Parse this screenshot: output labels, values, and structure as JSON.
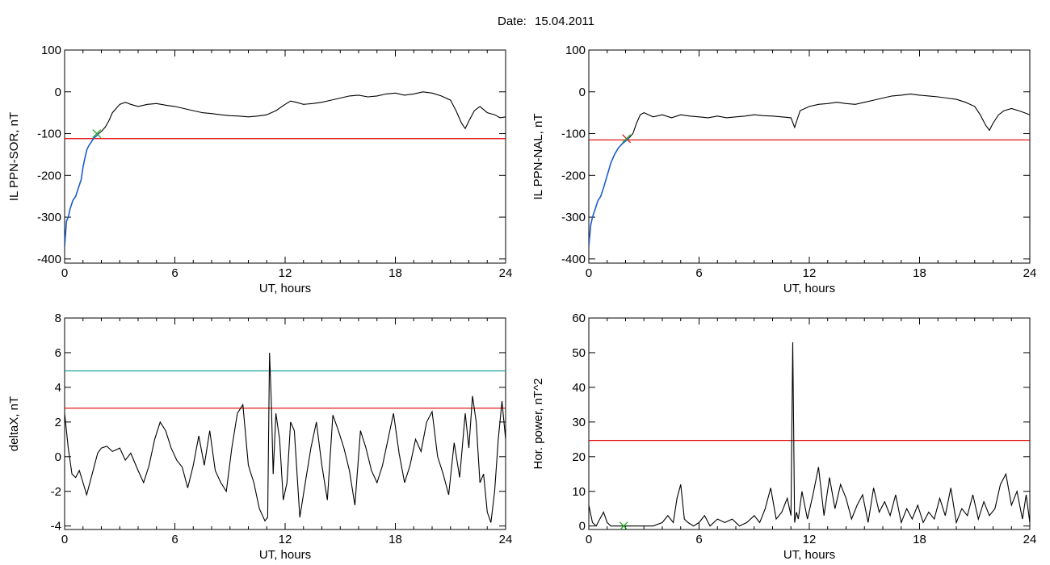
{
  "header": {
    "date_label": "Date:",
    "date_value": "15.04.2011"
  },
  "colors": {
    "trace": "#000000",
    "threshold": "#e00000",
    "threshold2": "#20a0a0",
    "early_segment": "#1f5fd0",
    "marker": "#22aa22",
    "marker2": "#cc2222"
  },
  "chart_data": [
    {
      "type": "line",
      "xlabel": "UT, hours",
      "ylabel": "IL PPN-SOR, nT",
      "xlim": [
        0,
        24
      ],
      "ylim": [
        -410,
        100
      ],
      "xticks": [
        0,
        6,
        12,
        18,
        24
      ],
      "yticks": [
        -400,
        -300,
        -200,
        -100,
        0,
        100
      ],
      "x": [
        0,
        0.1,
        0.2,
        0.3,
        0.45,
        0.6,
        0.75,
        0.9,
        1.0,
        1.1,
        1.2,
        1.3,
        1.45,
        1.6,
        1.75,
        1.85,
        2.0,
        2.2,
        2.4,
        2.6,
        2.8,
        3.0,
        3.3,
        3.6,
        4.0,
        4.5,
        5.0,
        5.5,
        6.0,
        6.5,
        7.0,
        7.5,
        8.0,
        8.5,
        9.0,
        9.5,
        10.0,
        10.5,
        11.0,
        11.5,
        12.0,
        12.3,
        12.6,
        13.0,
        13.5,
        14.0,
        14.5,
        15.0,
        15.5,
        16.0,
        16.5,
        17.0,
        17.5,
        18.0,
        18.5,
        19.0,
        19.5,
        20.0,
        20.5,
        21.0,
        21.3,
        21.6,
        21.8,
        22.0,
        22.3,
        22.6,
        23.0,
        23.4,
        23.7,
        24.0
      ],
      "values": [
        -370,
        -310,
        -300,
        -280,
        -260,
        -250,
        -230,
        -210,
        -180,
        -160,
        -140,
        -130,
        -120,
        -110,
        -105,
        -100,
        -95,
        -85,
        -70,
        -50,
        -40,
        -30,
        -25,
        -30,
        -35,
        -30,
        -28,
        -32,
        -35,
        -40,
        -45,
        -50,
        -52,
        -55,
        -57,
        -58,
        -60,
        -58,
        -55,
        -45,
        -30,
        -22,
        -25,
        -30,
        -28,
        -25,
        -20,
        -15,
        -10,
        -8,
        -12,
        -10,
        -5,
        -3,
        -8,
        -5,
        0,
        -3,
        -10,
        -20,
        -45,
        -75,
        -88,
        -70,
        -45,
        -35,
        -50,
        -55,
        -62,
        -60
      ],
      "threshold": -112,
      "early_segment_end_x": 1.85,
      "marker_x": 1.75,
      "marker_y": -100
    },
    {
      "type": "line",
      "xlabel": "UT, hours",
      "ylabel": "IL PPN-NAL, nT",
      "xlim": [
        0,
        24
      ],
      "ylim": [
        -410,
        100
      ],
      "xticks": [
        0,
        6,
        12,
        18,
        24
      ],
      "yticks": [
        -400,
        -300,
        -200,
        -100,
        0,
        100
      ],
      "x": [
        0,
        0.1,
        0.2,
        0.35,
        0.5,
        0.65,
        0.8,
        1.0,
        1.2,
        1.4,
        1.6,
        1.8,
        2.0,
        2.2,
        2.4,
        2.6,
        2.8,
        3.0,
        3.5,
        4.0,
        4.5,
        5.0,
        5.5,
        6.0,
        6.5,
        7.0,
        7.5,
        8.0,
        8.5,
        9.0,
        9.5,
        10.0,
        10.5,
        11.0,
        11.2,
        11.5,
        12.0,
        12.5,
        13.0,
        13.5,
        14.0,
        14.5,
        15.0,
        15.5,
        16.0,
        16.5,
        17.0,
        17.5,
        18.0,
        18.5,
        19.0,
        19.5,
        20.0,
        20.5,
        21.0,
        21.3,
        21.6,
        21.8,
        22.0,
        22.3,
        22.6,
        23.0,
        23.4,
        23.7,
        24.0
      ],
      "values": [
        -370,
        -320,
        -300,
        -280,
        -260,
        -250,
        -230,
        -200,
        -170,
        -150,
        -135,
        -125,
        -118,
        -110,
        -100,
        -75,
        -55,
        -50,
        -60,
        -55,
        -62,
        -55,
        -58,
        -60,
        -62,
        -58,
        -62,
        -60,
        -58,
        -55,
        -57,
        -58,
        -60,
        -62,
        -85,
        -45,
        -35,
        -30,
        -28,
        -25,
        -28,
        -30,
        -25,
        -20,
        -15,
        -10,
        -8,
        -5,
        -8,
        -10,
        -12,
        -15,
        -18,
        -25,
        -35,
        -55,
        -80,
        -92,
        -75,
        -55,
        -45,
        -40,
        -45,
        -50,
        -55
      ],
      "threshold": -115,
      "early_segment_end_x": 2.2,
      "marker_x": 2.05,
      "marker_y": -112
    },
    {
      "type": "line",
      "xlabel": "UT, hours",
      "ylabel": "deltaX, nT",
      "xlim": [
        0,
        24
      ],
      "ylim": [
        -4.2,
        8
      ],
      "xticks": [
        0,
        6,
        12,
        18,
        24
      ],
      "yticks": [
        -4,
        -2,
        0,
        2,
        4,
        6,
        8
      ],
      "x": [
        0,
        0.2,
        0.4,
        0.6,
        0.8,
        1.0,
        1.2,
        1.5,
        1.8,
        2.0,
        2.3,
        2.6,
        3.0,
        3.3,
        3.6,
        4.0,
        4.3,
        4.6,
        4.9,
        5.2,
        5.5,
        5.8,
        6.1,
        6.4,
        6.7,
        7.0,
        7.3,
        7.6,
        7.9,
        8.2,
        8.5,
        8.8,
        9.1,
        9.4,
        9.7,
        10.0,
        10.3,
        10.6,
        10.9,
        11.05,
        11.15,
        11.25,
        11.35,
        11.5,
        11.7,
        11.9,
        12.1,
        12.3,
        12.5,
        12.8,
        13.1,
        13.4,
        13.7,
        14.0,
        14.3,
        14.6,
        14.9,
        15.2,
        15.5,
        15.8,
        16.1,
        16.4,
        16.7,
        17.0,
        17.3,
        17.6,
        17.9,
        18.2,
        18.5,
        18.8,
        19.1,
        19.4,
        19.7,
        20.0,
        20.3,
        20.6,
        20.9,
        21.2,
        21.5,
        21.8,
        22.0,
        22.2,
        22.4,
        22.6,
        22.8,
        23.0,
        23.2,
        23.4,
        23.6,
        23.8,
        24.0
      ],
      "values": [
        2.5,
        0.5,
        -1.0,
        -1.2,
        -0.8,
        -1.5,
        -2.2,
        -1.0,
        0.2,
        0.5,
        0.6,
        0.3,
        0.5,
        -0.2,
        0.2,
        -0.8,
        -1.5,
        -0.5,
        1.0,
        2.0,
        1.5,
        0.5,
        -0.2,
        -0.6,
        -1.8,
        -0.5,
        1.2,
        -0.5,
        1.5,
        -0.8,
        -1.5,
        -2.0,
        0.5,
        2.5,
        3.0,
        -0.5,
        -1.5,
        -3.0,
        -3.7,
        -3.5,
        6.0,
        3.2,
        -1.0,
        2.5,
        1.0,
        -2.5,
        -1.5,
        2.0,
        1.5,
        -3.5,
        -1.5,
        0.5,
        2.0,
        -0.5,
        -2.5,
        2.4,
        1.5,
        0.5,
        -0.8,
        -2.8,
        1.5,
        0.5,
        -0.8,
        -1.5,
        -0.5,
        1.0,
        2.5,
        0.2,
        -1.5,
        -0.5,
        1.0,
        0.3,
        2.0,
        2.6,
        0.0,
        -1.0,
        -2.2,
        0.8,
        -1.2,
        2.5,
        0.5,
        3.5,
        2.0,
        -1.5,
        -1.0,
        -3.2,
        -3.8,
        -2.0,
        1.0,
        3.2,
        1.0
      ],
      "threshold": 2.8,
      "threshold2": 4.95
    },
    {
      "type": "line",
      "xlabel": "UT, hours",
      "ylabel": "Hor. power, nT^2",
      "xlim": [
        0,
        24
      ],
      "ylim": [
        -1,
        60
      ],
      "xticks": [
        0,
        6,
        12,
        18,
        24
      ],
      "yticks": [
        0,
        10,
        20,
        30,
        40,
        50,
        60
      ],
      "x": [
        0,
        0.2,
        0.4,
        0.6,
        0.8,
        1.0,
        1.2,
        1.5,
        2.0,
        2.5,
        3.0,
        3.5,
        4.0,
        4.3,
        4.6,
        4.8,
        5.0,
        5.2,
        5.4,
        5.7,
        6.0,
        6.3,
        6.6,
        7.0,
        7.4,
        7.8,
        8.2,
        8.6,
        9.0,
        9.3,
        9.6,
        9.9,
        10.2,
        10.5,
        10.8,
        11.0,
        11.1,
        11.2,
        11.3,
        11.4,
        11.6,
        11.9,
        12.2,
        12.5,
        12.8,
        13.1,
        13.4,
        13.7,
        14.0,
        14.3,
        14.6,
        14.9,
        15.2,
        15.5,
        15.8,
        16.1,
        16.4,
        16.7,
        17.0,
        17.3,
        17.6,
        17.9,
        18.2,
        18.5,
        18.8,
        19.1,
        19.4,
        19.7,
        20.0,
        20.3,
        20.6,
        20.9,
        21.2,
        21.5,
        21.8,
        22.1,
        22.4,
        22.7,
        23.0,
        23.3,
        23.6,
        23.8,
        24.0
      ],
      "values": [
        6,
        1,
        0,
        2,
        4,
        1,
        0,
        0,
        0,
        0,
        0,
        0,
        1,
        3,
        1,
        8,
        12,
        2,
        1,
        0,
        1,
        3,
        0,
        2,
        1,
        2,
        0,
        1,
        3,
        1,
        5,
        11,
        2,
        4,
        8,
        3,
        53,
        1,
        4,
        2,
        10,
        2,
        9,
        17,
        3,
        14,
        5,
        12,
        8,
        2,
        6,
        9,
        1,
        11,
        4,
        7,
        3,
        9,
        1,
        5,
        2,
        6,
        1,
        4,
        2,
        8,
        3,
        11,
        1,
        5,
        3,
        9,
        2,
        7,
        3,
        5,
        12,
        15,
        6,
        10,
        2,
        9,
        1
      ],
      "threshold": 24.7,
      "marker_x": 1.9,
      "marker_y": 0
    }
  ]
}
